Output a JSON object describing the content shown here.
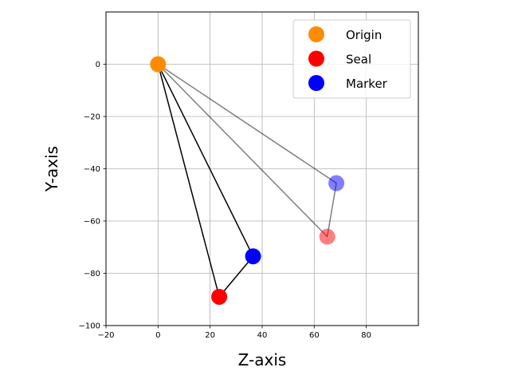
{
  "chart_data": {
    "type": "scatter",
    "title": "",
    "xlabel": "Z-axis",
    "ylabel": "Y-axis",
    "xlim": [
      -20,
      100
    ],
    "ylim": [
      -100,
      20
    ],
    "xticks": [
      -20,
      0,
      20,
      40,
      60,
      80
    ],
    "yticks": [
      -100,
      -80,
      -60,
      -40,
      -20,
      0
    ],
    "xtick_labels": [
      "−20",
      "0",
      "20",
      "40",
      "60",
      "80"
    ],
    "ytick_labels": [
      "−100",
      "−80",
      "−60",
      "−40",
      "−20",
      "0"
    ],
    "grid": true,
    "legend_position": "upper-right",
    "series": [
      {
        "name": "Origin",
        "color": "#ff8c00",
        "points": [
          {
            "x": 0,
            "y": 0,
            "alpha": 1.0
          }
        ]
      },
      {
        "name": "Seal",
        "color": "#ff0000",
        "points": [
          {
            "x": 23.5,
            "y": -89.0,
            "alpha": 1.0
          },
          {
            "x": 65.0,
            "y": -66.0,
            "alpha": 0.5
          }
        ]
      },
      {
        "name": "Marker",
        "color": "#0000ff",
        "points": [
          {
            "x": 36.5,
            "y": -73.5,
            "alpha": 1.0
          },
          {
            "x": 68.5,
            "y": -45.5,
            "alpha": 0.5
          }
        ]
      }
    ],
    "lines": [
      {
        "from": [
          0,
          0
        ],
        "to": [
          23.5,
          -89.0
        ],
        "color": "#000000",
        "alpha": 1.0
      },
      {
        "from": [
          0,
          0
        ],
        "to": [
          36.5,
          -73.5
        ],
        "color": "#000000",
        "alpha": 1.0
      },
      {
        "from": [
          23.5,
          -89.0
        ],
        "to": [
          36.5,
          -73.5
        ],
        "color": "#000000",
        "alpha": 1.0
      },
      {
        "from": [
          0,
          0
        ],
        "to": [
          65.0,
          -66.0
        ],
        "color": "#000000",
        "alpha": 0.5
      },
      {
        "from": [
          0,
          0
        ],
        "to": [
          68.5,
          -45.5
        ],
        "color": "#000000",
        "alpha": 0.5
      },
      {
        "from": [
          65.0,
          -66.0
        ],
        "to": [
          68.5,
          -45.5
        ],
        "color": "#000000",
        "alpha": 0.5
      }
    ]
  }
}
